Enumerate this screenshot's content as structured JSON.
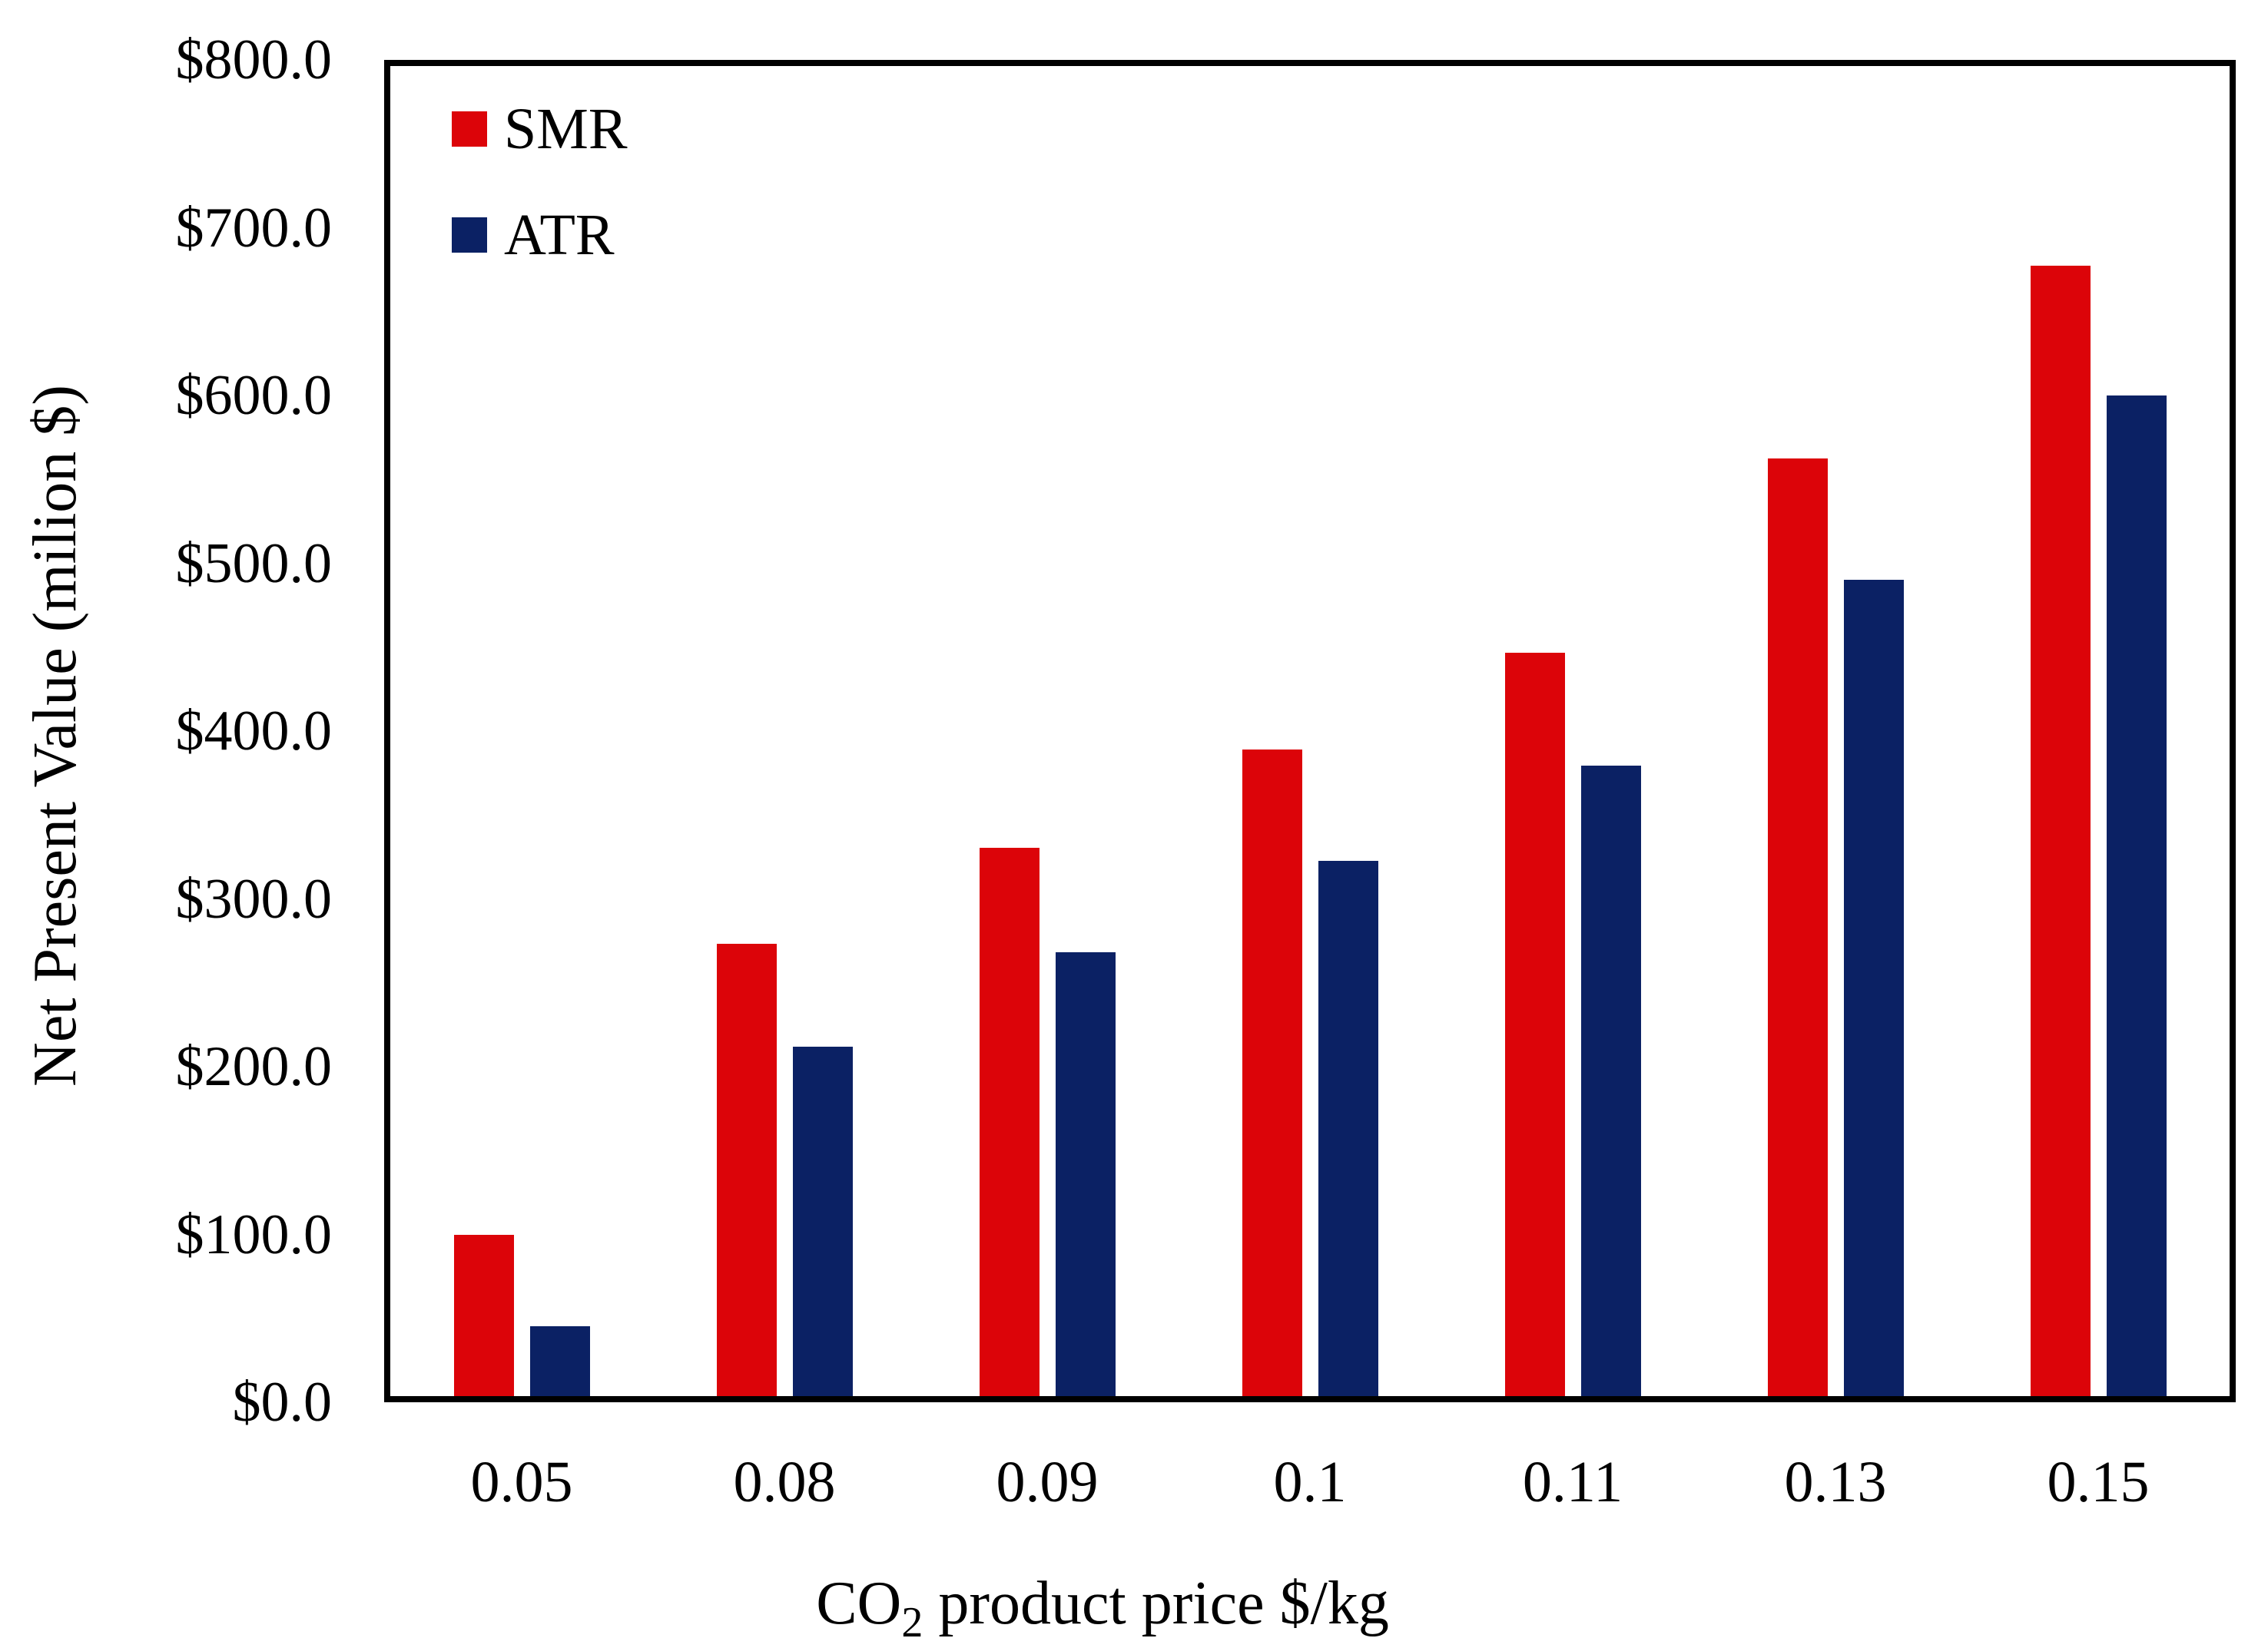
{
  "chart_data": {
    "type": "bar",
    "title": "",
    "xlabel": {
      "prefix": "CO",
      "subscript": "2",
      "suffix": " product price $/kg"
    },
    "ylabel": "Net Present Value (milion $)",
    "categories": [
      "0.05",
      "0.08",
      "0.09",
      "0.1",
      "0.11",
      "0.13",
      "0.15"
    ],
    "series": [
      {
        "name": "SMR",
        "color": "#dc0409",
        "values": [
          97,
          272,
          330,
          389,
          447,
          564,
          680
        ]
      },
      {
        "name": "ATR",
        "color": "#0b2164",
        "values": [
          42,
          210,
          267,
          322,
          379,
          491,
          602
        ]
      }
    ],
    "ylim": [
      0,
      800
    ],
    "ytick_step": 100,
    "ytick_labels": [
      "$800.0",
      "$700.0",
      "$600.0",
      "$500.0",
      "$400.0",
      "$300.0",
      "$200.0",
      "$100.0",
      "$0.0"
    ],
    "legend_position": "top-left",
    "grid": false,
    "axis_color": "#000000",
    "background_color": "#ffffff"
  }
}
